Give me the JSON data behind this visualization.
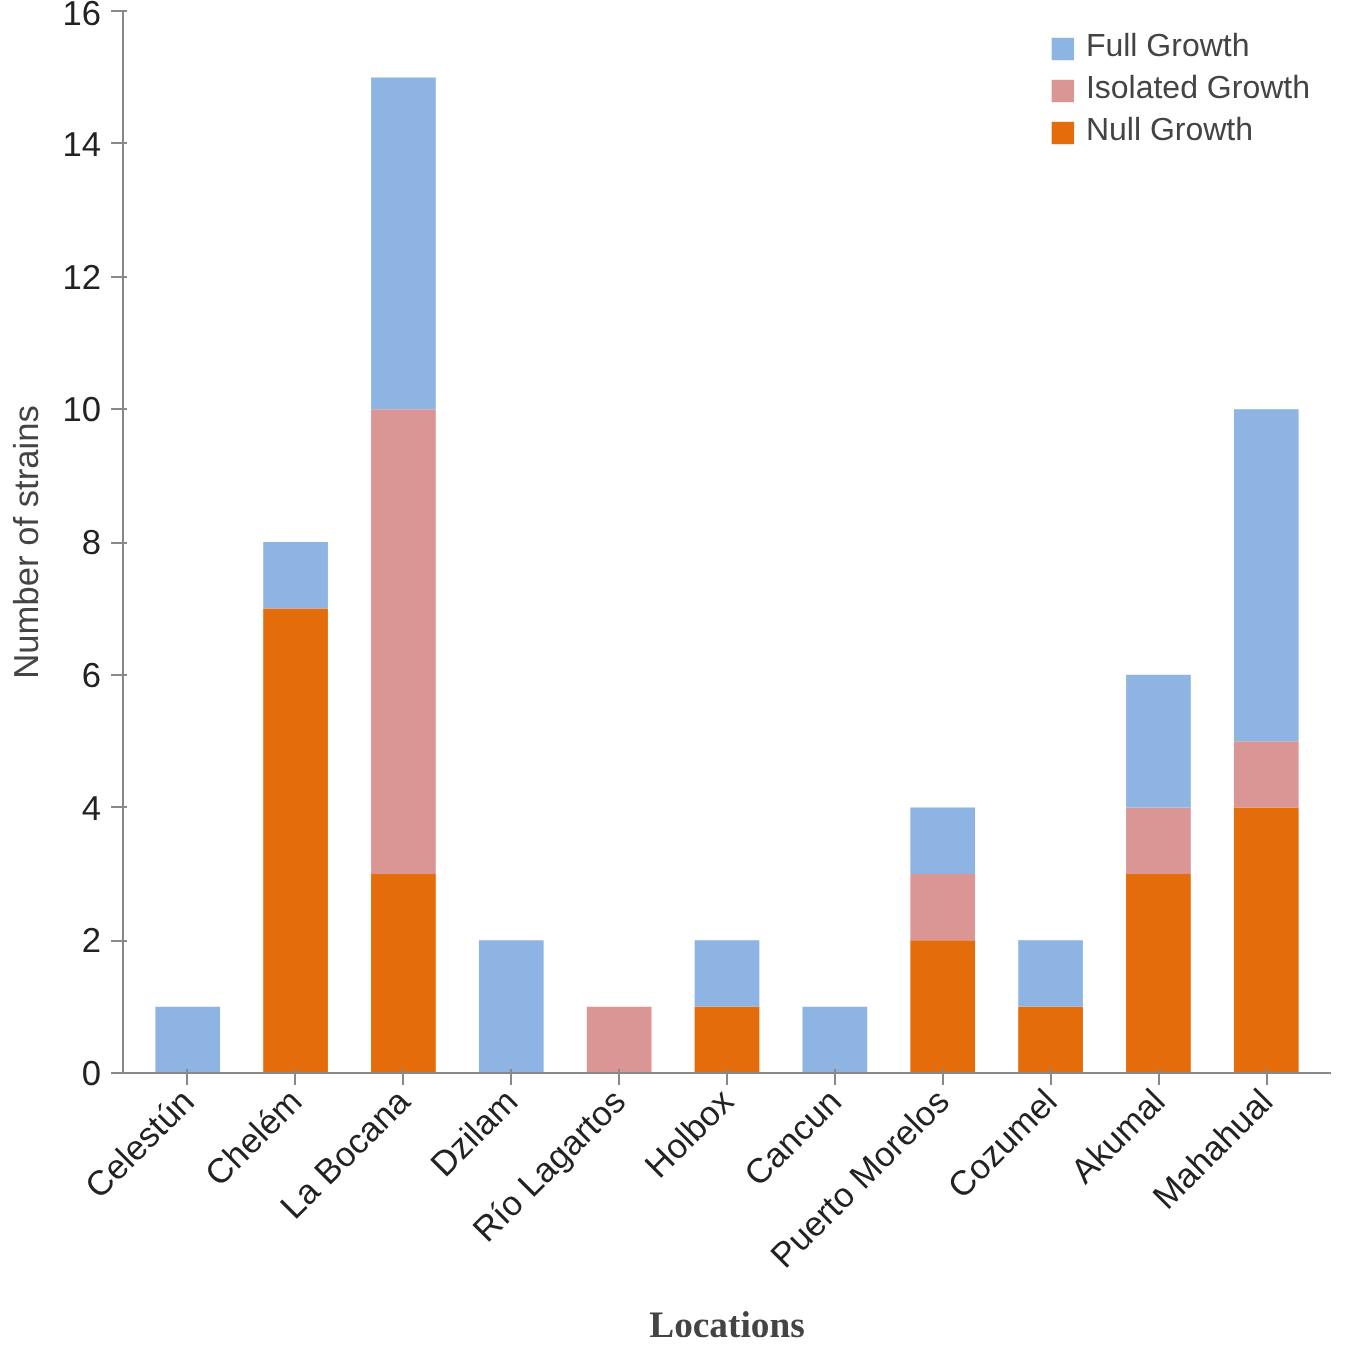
{
  "chart_data": {
    "type": "bar",
    "stacked": true,
    "xlabel": "Locations",
    "ylabel": "Number of strains",
    "categories": [
      "Celestún",
      "Chelém",
      "La Bocana",
      "Dzilam",
      "Río Lagartos",
      "Holbox",
      "Cancun",
      "Puerto Morelos",
      "Cozumel",
      "Akumal",
      "Mahahual"
    ],
    "series": [
      {
        "name": "Null Growth",
        "color": "#e46c0a",
        "values": [
          0,
          7,
          3,
          0,
          0,
          1,
          0,
          2,
          1,
          3,
          4
        ]
      },
      {
        "name": "Isolated Growth",
        "color": "#d99694",
        "values": [
          0,
          0,
          7,
          0,
          1,
          0,
          0,
          1,
          0,
          1,
          1
        ]
      },
      {
        "name": "Full Growth",
        "color": "#8eb4e3",
        "values": [
          1,
          1,
          5,
          2,
          0,
          1,
          1,
          1,
          1,
          2,
          5
        ]
      }
    ],
    "ylim": [
      0,
      16
    ],
    "yticks": [
      0,
      2,
      4,
      6,
      8,
      10,
      12,
      14,
      16
    ],
    "grid": false,
    "legend": "top right"
  }
}
